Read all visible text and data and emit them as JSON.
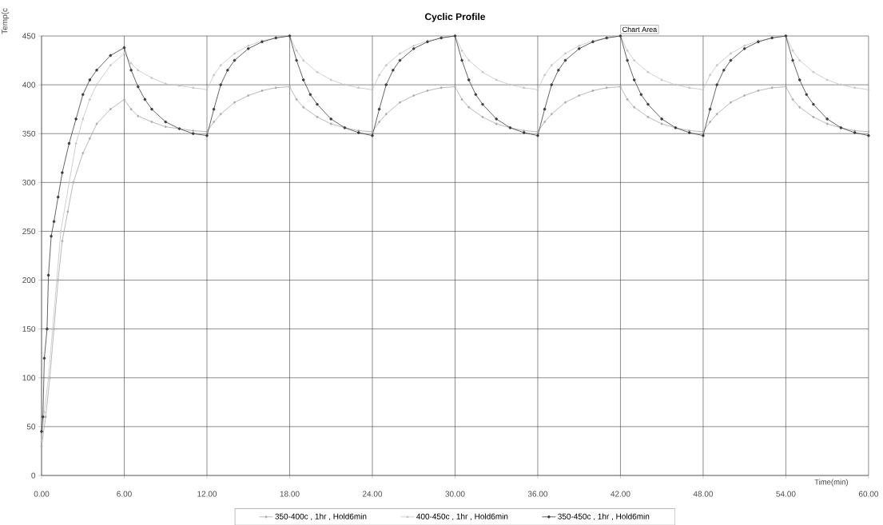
{
  "chart_data": {
    "type": "line",
    "title": "Cyclic Profile",
    "xlabel": "Time(min)",
    "ylabel": "Temp(c",
    "xlim": [
      0,
      60
    ],
    "ylim": [
      0,
      450
    ],
    "xticks": [
      {
        "value": 0,
        "label": "0.00"
      },
      {
        "value": 6,
        "label": "6.00"
      },
      {
        "value": 12,
        "label": "12.00"
      },
      {
        "value": 18,
        "label": "18.00"
      },
      {
        "value": 24,
        "label": "24.00"
      },
      {
        "value": 30,
        "label": "30.00"
      },
      {
        "value": 36,
        "label": "36.00"
      },
      {
        "value": 42,
        "label": "42.00"
      },
      {
        "value": 48,
        "label": "48.00"
      },
      {
        "value": 54,
        "label": "54.00"
      },
      {
        "value": 60,
        "label": "60.00"
      }
    ],
    "yticks": [
      0,
      50,
      100,
      150,
      200,
      250,
      300,
      350,
      400,
      450
    ],
    "grid": true,
    "legend": "bottom",
    "annotations": [
      "Chart Area"
    ],
    "series": [
      {
        "name": "350-400c , 1hr , Hold6min",
        "color": "#a8a8a8",
        "marker": "diamond",
        "x": [
          0,
          0.3,
          0.6,
          0.9,
          1.2,
          1.5,
          1.9,
          2.3,
          3,
          3.5,
          4,
          5,
          6,
          6.5,
          7,
          8,
          9,
          10,
          11,
          12,
          12.5,
          13,
          14,
          15,
          16,
          17,
          18,
          18.5,
          19,
          20,
          21,
          22,
          23,
          24,
          24.5,
          25,
          26,
          27,
          28,
          29,
          30,
          30.5,
          31,
          32,
          33,
          34,
          35,
          36,
          36.5,
          37,
          38,
          39,
          40,
          41,
          42,
          42.5,
          43,
          44,
          45,
          46,
          47,
          48,
          48.5,
          49,
          50,
          51,
          52,
          53,
          54,
          54.5,
          55,
          56,
          57,
          58,
          59,
          60
        ],
        "values": [
          30,
          60,
          100,
          150,
          200,
          240,
          270,
          300,
          330,
          345,
          360,
          375,
          385,
          375,
          368,
          362,
          357,
          355,
          353,
          352,
          362,
          370,
          382,
          389,
          394,
          397,
          398,
          385,
          377,
          367,
          360,
          356,
          353,
          352,
          362,
          370,
          382,
          389,
          394,
          397,
          398,
          385,
          377,
          367,
          360,
          356,
          353,
          352,
          362,
          370,
          382,
          389,
          394,
          397,
          398,
          385,
          377,
          367,
          360,
          356,
          353,
          352,
          362,
          370,
          382,
          389,
          394,
          397,
          398,
          385,
          377,
          367,
          360,
          356,
          353,
          352
        ]
      },
      {
        "name": "400-450c , 1hr , Hold6min",
        "color": "#c4c4c4",
        "marker": "triangle",
        "x": [
          0,
          0.2,
          0.5,
          0.8,
          1.1,
          1.4,
          2,
          2.5,
          3,
          3.5,
          4,
          5,
          6,
          6.5,
          7,
          8,
          9,
          10,
          11,
          12,
          12.5,
          13,
          14,
          15,
          16,
          17,
          18,
          18.5,
          19,
          20,
          21,
          22,
          23,
          24,
          24.5,
          25,
          26,
          27,
          28,
          29,
          30,
          30.5,
          31,
          32,
          33,
          34,
          35,
          36,
          36.5,
          37,
          38,
          39,
          40,
          41,
          42,
          42.5,
          43,
          44,
          45,
          46,
          47,
          48,
          48.5,
          49,
          50,
          51,
          52,
          53,
          54,
          54.5,
          55,
          56,
          57,
          58,
          59,
          60
        ],
        "values": [
          35,
          65,
          100,
          150,
          200,
          250,
          300,
          340,
          365,
          385,
          400,
          420,
          432,
          422,
          415,
          407,
          401,
          399,
          397,
          395,
          410,
          420,
          432,
          440,
          445,
          448,
          450,
          435,
          425,
          413,
          405,
          400,
          397,
          395,
          410,
          420,
          432,
          440,
          445,
          448,
          450,
          435,
          425,
          413,
          405,
          400,
          397,
          395,
          410,
          420,
          432,
          440,
          445,
          448,
          450,
          435,
          425,
          413,
          405,
          400,
          397,
          395,
          410,
          420,
          432,
          440,
          445,
          448,
          450,
          435,
          425,
          413,
          405,
          400,
          397,
          395
        ]
      },
      {
        "name": "350-450c , 1hr , Hold6min",
        "color": "#3c3c3c",
        "marker": "circle",
        "x": [
          0,
          0.1,
          0.2,
          0.4,
          0.5,
          0.7,
          0.9,
          1.2,
          1.5,
          2,
          2.5,
          3,
          3.5,
          4,
          5,
          6,
          6.5,
          7,
          7.5,
          8,
          9,
          10,
          11,
          12,
          12.5,
          13,
          13.5,
          14,
          15,
          16,
          17,
          18,
          18.5,
          19,
          19.5,
          20,
          21,
          22,
          23,
          24,
          24.5,
          25,
          25.5,
          26,
          27,
          28,
          29,
          30,
          30.5,
          31,
          31.5,
          32,
          33,
          34,
          35,
          36,
          36.5,
          37,
          37.5,
          38,
          39,
          40,
          41,
          42,
          42.5,
          43,
          43.5,
          44,
          45,
          46,
          47,
          48,
          48.5,
          49,
          49.5,
          50,
          51,
          52,
          53,
          54,
          54.5,
          55,
          55.5,
          56,
          57,
          58,
          59,
          60
        ],
        "values": [
          45,
          60,
          120,
          150,
          205,
          245,
          260,
          285,
          310,
          340,
          365,
          390,
          405,
          415,
          430,
          438,
          415,
          398,
          385,
          375,
          362,
          355,
          350,
          348,
          375,
          400,
          415,
          425,
          437,
          444,
          448,
          450,
          425,
          405,
          390,
          380,
          365,
          356,
          351,
          348,
          375,
          400,
          415,
          425,
          437,
          444,
          448,
          450,
          425,
          405,
          390,
          380,
          365,
          356,
          351,
          348,
          375,
          400,
          415,
          425,
          437,
          444,
          448,
          450,
          425,
          405,
          390,
          380,
          365,
          356,
          351,
          348,
          375,
          400,
          415,
          425,
          437,
          444,
          448,
          450,
          425,
          405,
          390,
          380,
          365,
          356,
          351,
          348
        ]
      }
    ]
  }
}
